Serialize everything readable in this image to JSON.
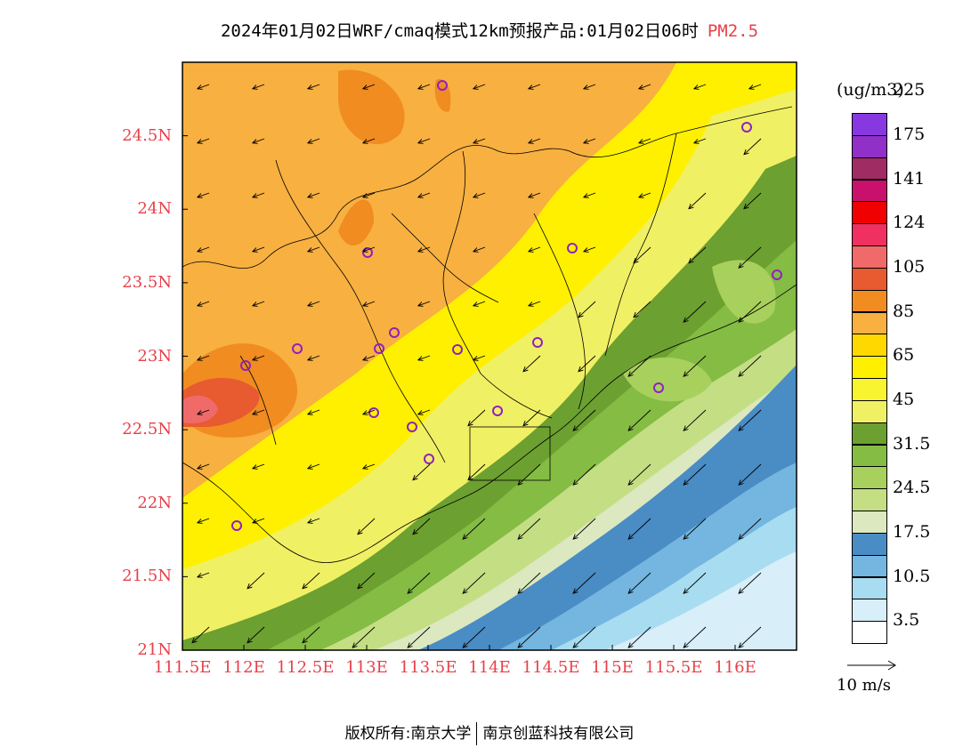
{
  "title": {
    "main": "2024年01月02日WRF/cmaq模式12km预报产品:01月02日06时",
    "variable": "PM2.5"
  },
  "map": {
    "lat_labels": [
      "24.5N",
      "24N",
      "23.5N",
      "23N",
      "22.5N",
      "22N",
      "21.5N",
      "21N"
    ],
    "lon_labels": [
      "111.5E",
      "112E",
      "112.5E",
      "113E",
      "113.5E",
      "114E",
      "114.5E",
      "115E",
      "115.5E",
      "116E"
    ],
    "lon_range": [
      111.5,
      116.5
    ],
    "lat_range": [
      21.0,
      25.0
    ],
    "wind_direction": "northeast-to-southwest",
    "stations_marker": "purple-circle"
  },
  "colorbar": {
    "unit": "(ug/m3)",
    "colors": [
      "#ffffff",
      "#d8eef8",
      "#a8dcf0",
      "#74b6e0",
      "#4a8cc4",
      "#dce8c0",
      "#c4de84",
      "#a8d05c",
      "#84bc44",
      "#6ca030",
      "#f0f064",
      "#f8f430",
      "#fff000",
      "#ffd800",
      "#f8b040",
      "#f08c20",
      "#e85a30",
      "#f06a6a",
      "#f03060",
      "#f00000",
      "#c8106c",
      "#a02c64",
      "#9030c8",
      "#8838e0"
    ],
    "labels": [
      "3.5",
      "10.5",
      "17.5",
      "24.5",
      "31.5",
      "45",
      "65",
      "85",
      "105",
      "124",
      "141",
      "175",
      "225"
    ]
  },
  "reference_vector": "10 m/s",
  "footer": {
    "left": "版权所有:南京大学",
    "right": "南京创蓝科技有限公司"
  }
}
